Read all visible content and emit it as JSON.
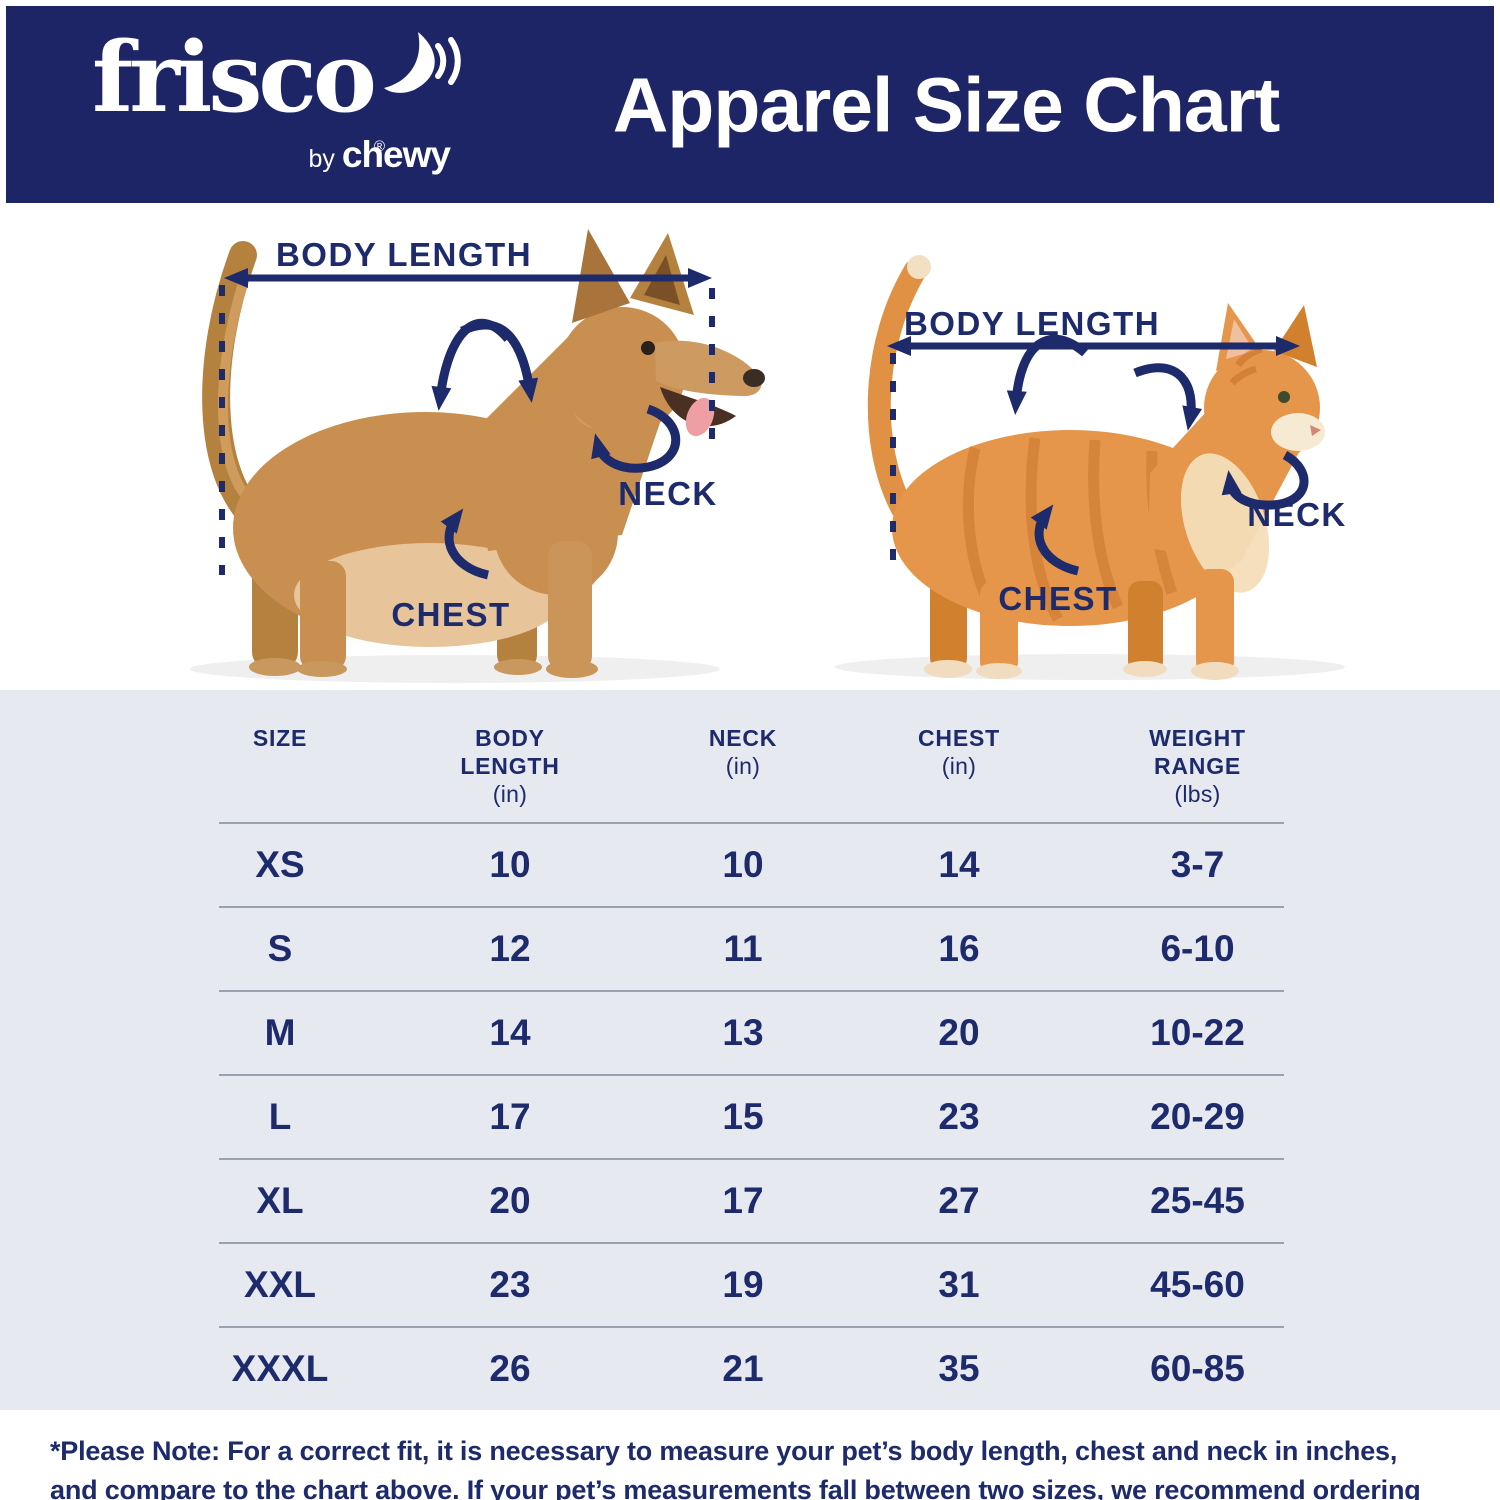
{
  "brand": {
    "logo_text": "frisco",
    "registered_mark": "®",
    "byline_by": "by ",
    "byline_brand": "chewy"
  },
  "header": {
    "title": "Apparel Size Chart"
  },
  "diagram": {
    "dog": {
      "body_length": "BODY LENGTH",
      "neck": "NECK",
      "chest": "CHEST"
    },
    "cat": {
      "body_length": "BODY LENGTH",
      "neck": "NECK",
      "chest": "CHEST"
    }
  },
  "table": {
    "headers": [
      {
        "label": "SIZE",
        "unit": ""
      },
      {
        "label": "BODY LENGTH",
        "unit": "(in)"
      },
      {
        "label": "NECK",
        "unit": "(in)"
      },
      {
        "label": "CHEST",
        "unit": "(in)"
      },
      {
        "label": "WEIGHT RANGE",
        "unit": "(lbs)"
      }
    ],
    "rows": [
      {
        "size": "XS",
        "body_length": "10",
        "neck": "10",
        "chest": "14",
        "weight": "3-7"
      },
      {
        "size": "S",
        "body_length": "12",
        "neck": "11",
        "chest": "16",
        "weight": "6-10"
      },
      {
        "size": "M",
        "body_length": "14",
        "neck": "13",
        "chest": "20",
        "weight": "10-22"
      },
      {
        "size": "L",
        "body_length": "17",
        "neck": "15",
        "chest": "23",
        "weight": "20-29"
      },
      {
        "size": "XL",
        "body_length": "20",
        "neck": "17",
        "chest": "27",
        "weight": "25-45"
      },
      {
        "size": "XXL",
        "body_length": "23",
        "neck": "19",
        "chest": "31",
        "weight": "45-60"
      },
      {
        "size": "XXXL",
        "body_length": "26",
        "neck": "21",
        "chest": "35",
        "weight": "60-85"
      }
    ]
  },
  "footnote": "*Please Note: For a correct fit, it is necessary to measure your pet’s body length, chest and neck in inches, and compare to the chart above. If your pet’s measurements fall between two sizes, we recommend ordering the larger of the two sizes.",
  "colors": {
    "header_navy": "#1e2566",
    "ink_navy": "#1d2a6b",
    "table_bg": "#e7e9f0",
    "divider_gray": "#9aa0ae",
    "dog_coat": "#c88f51",
    "cat_coat": "#e5964a"
  },
  "chart_data": {
    "type": "table",
    "title": "Apparel Size Chart",
    "columns": [
      "SIZE",
      "BODY LENGTH (in)",
      "NECK (in)",
      "CHEST (in)",
      "WEIGHT RANGE (lbs)"
    ],
    "rows": [
      [
        "XS",
        "10",
        "10",
        "14",
        "3-7"
      ],
      [
        "S",
        "12",
        "11",
        "16",
        "6-10"
      ],
      [
        "M",
        "14",
        "13",
        "20",
        "10-22"
      ],
      [
        "L",
        "17",
        "15",
        "23",
        "20-29"
      ],
      [
        "XL",
        "20",
        "17",
        "27",
        "25-45"
      ],
      [
        "XXL",
        "23",
        "19",
        "31",
        "45-60"
      ],
      [
        "XXXL",
        "26",
        "21",
        "35",
        "60-85"
      ]
    ]
  }
}
